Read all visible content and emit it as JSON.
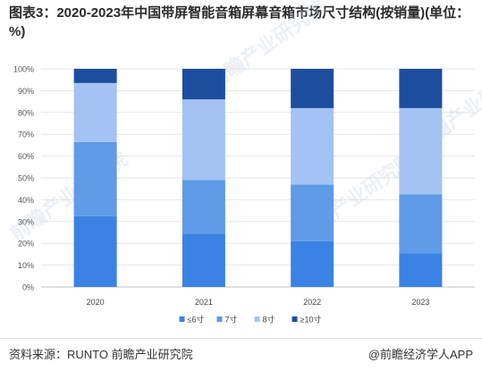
{
  "title": "图表3：2020-2023年中国带屏智能音箱屏幕音箱市场尺寸结构(按销量)(单位：%)",
  "source": "资料来源：RUNTO 前瞻产业研究院",
  "credit": "@前瞻经济学人APP",
  "watermark": "前瞻产业研究院",
  "chart_data": {
    "type": "bar",
    "stacked": true,
    "categories": [
      "2020",
      "2021",
      "2022",
      "2023"
    ],
    "series": [
      {
        "name": "≤6寸",
        "color": "#3a83e4",
        "values": [
          32.5,
          24.5,
          21,
          15.5
        ]
      },
      {
        "name": "7寸",
        "color": "#5f9be7",
        "values": [
          34,
          24.5,
          26,
          27
        ]
      },
      {
        "name": "8寸",
        "color": "#a2c3f3",
        "values": [
          27,
          37,
          35,
          39.5
        ]
      },
      {
        "name": "≥10寸",
        "color": "#1d4e9e",
        "values": [
          6.5,
          14,
          18,
          18
        ]
      }
    ],
    "yticks": [
      "0%",
      "10%",
      "20%",
      "30%",
      "40%",
      "50%",
      "60%",
      "70%",
      "80%",
      "90%",
      "100%"
    ],
    "ylim": [
      0,
      100
    ],
    "grid": true,
    "legend_position": "bottom"
  }
}
